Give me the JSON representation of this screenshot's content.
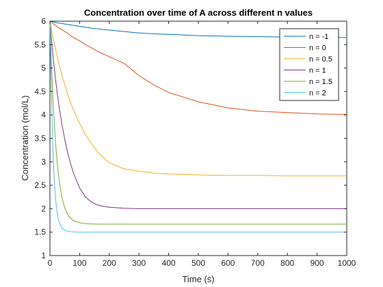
{
  "chart_data": {
    "type": "line",
    "title": "Concentration over time of A across different n values",
    "xlabel": "Time (s)",
    "ylabel": "Concentration (mol/L)",
    "xlim": [
      0,
      1000
    ],
    "ylim": [
      1,
      6
    ],
    "xticks": [
      0,
      100,
      200,
      300,
      400,
      500,
      600,
      700,
      800,
      900,
      1000
    ],
    "xtick_labels": [
      "0",
      "100",
      "200",
      "300",
      "400",
      "500",
      "600",
      "700",
      "800",
      "900",
      "1000"
    ],
    "yticks": [
      1,
      1.5,
      2,
      2.5,
      3,
      3.5,
      4,
      4.5,
      5,
      5.5,
      6
    ],
    "ytick_labels": [
      "1",
      "1.5",
      "2",
      "2.5",
      "3",
      "3.5",
      "4",
      "4.5",
      "5",
      "5.5",
      "6"
    ],
    "grid": false,
    "legend_position": "top-right",
    "x": [
      0,
      5,
      10,
      15,
      20,
      25,
      30,
      40,
      50,
      60,
      70,
      80,
      100,
      120,
      140,
      160,
      180,
      200,
      250,
      300,
      350,
      400,
      500,
      600,
      700,
      800,
      900,
      1000
    ],
    "series": [
      {
        "name": "n = -1",
        "color": "#0072BD",
        "values": [
          6.0,
          5.99,
          5.99,
          5.98,
          5.97,
          5.97,
          5.96,
          5.95,
          5.94,
          5.93,
          5.92,
          5.91,
          5.89,
          5.87,
          5.85,
          5.84,
          5.82,
          5.81,
          5.78,
          5.75,
          5.73,
          5.72,
          5.69,
          5.68,
          5.67,
          5.66,
          5.66,
          5.65
        ]
      },
      {
        "name": "n = 0",
        "color": "#D95319",
        "values": [
          6.0,
          5.98,
          5.95,
          5.93,
          5.91,
          5.88,
          5.86,
          5.82,
          5.78,
          5.74,
          5.69,
          5.65,
          5.58,
          5.5,
          5.43,
          5.36,
          5.3,
          5.24,
          5.1,
          4.84,
          4.64,
          4.48,
          4.28,
          4.15,
          4.08,
          4.05,
          4.02,
          4.01
        ]
      },
      {
        "name": "n = 0.5",
        "color": "#EDB120",
        "values": [
          6.0,
          5.83,
          5.67,
          5.52,
          5.37,
          5.23,
          5.1,
          4.86,
          4.64,
          4.44,
          4.26,
          4.1,
          3.82,
          3.58,
          3.39,
          3.22,
          3.09,
          2.98,
          2.85,
          2.8,
          2.76,
          2.74,
          2.72,
          2.71,
          2.71,
          2.7,
          2.7,
          2.7
        ]
      },
      {
        "name": "n = 1",
        "color": "#7E2F8E",
        "values": [
          6.0,
          5.62,
          5.28,
          4.98,
          4.7,
          4.45,
          4.22,
          3.81,
          3.48,
          3.19,
          2.95,
          2.75,
          2.44,
          2.25,
          2.14,
          2.08,
          2.05,
          2.03,
          2.01,
          2.0,
          2.0,
          2.0,
          2.0,
          2.0,
          2.0,
          2.0,
          2.0,
          2.0
        ]
      },
      {
        "name": "n = 1.5",
        "color": "#77AC30",
        "values": [
          6.0,
          5.11,
          4.38,
          3.79,
          3.32,
          2.95,
          2.66,
          2.25,
          2.01,
          1.87,
          1.79,
          1.74,
          1.7,
          1.68,
          1.675,
          1.67,
          1.67,
          1.67,
          1.67,
          1.67,
          1.67,
          1.67,
          1.67,
          1.67,
          1.67,
          1.67,
          1.67,
          1.67
        ]
      },
      {
        "name": "n = 2",
        "color": "#4DBEEE",
        "values": [
          6.0,
          4.45,
          3.26,
          2.55,
          2.15,
          1.89,
          1.73,
          1.59,
          1.54,
          1.52,
          1.51,
          1.505,
          1.5,
          1.5,
          1.5,
          1.5,
          1.5,
          1.5,
          1.5,
          1.5,
          1.5,
          1.5,
          1.5,
          1.5,
          1.5,
          1.5,
          1.5,
          1.5
        ]
      }
    ]
  }
}
